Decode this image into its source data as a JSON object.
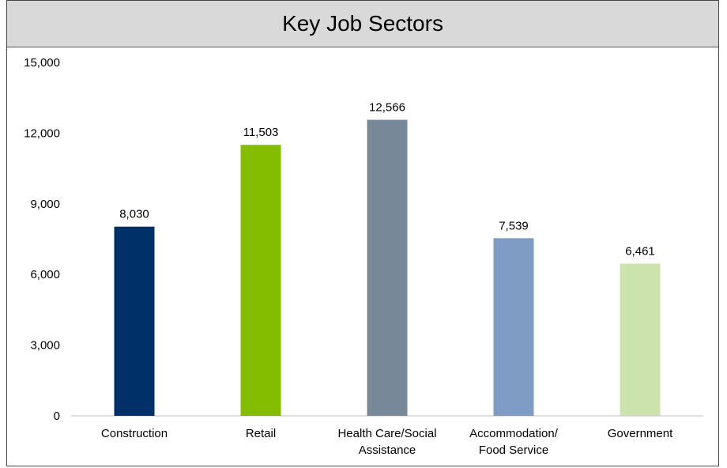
{
  "chart_data": {
    "type": "bar",
    "title": "Key Job Sectors",
    "categories": [
      [
        "Construction"
      ],
      [
        "Retail"
      ],
      [
        "Health Care/Social",
        "Assistance"
      ],
      [
        "Accommodation/",
        "Food Service"
      ],
      [
        "Government"
      ]
    ],
    "values": [
      8030,
      11503,
      12566,
      7539,
      6461
    ],
    "value_labels": [
      "8,030",
      "11,503",
      "12,566",
      "7,539",
      "6,461"
    ],
    "colors": [
      "#003068",
      "#84bd00",
      "#778899",
      "#7f9dc4",
      "#cde3ad"
    ],
    "ylim": [
      0,
      15000
    ],
    "yticks": [
      0,
      3000,
      6000,
      9000,
      12000,
      15000
    ],
    "ytick_labels": [
      "0",
      "3,000",
      "6,000",
      "9,000",
      "12,000",
      "15,000"
    ],
    "grid": false,
    "legend": "none"
  }
}
